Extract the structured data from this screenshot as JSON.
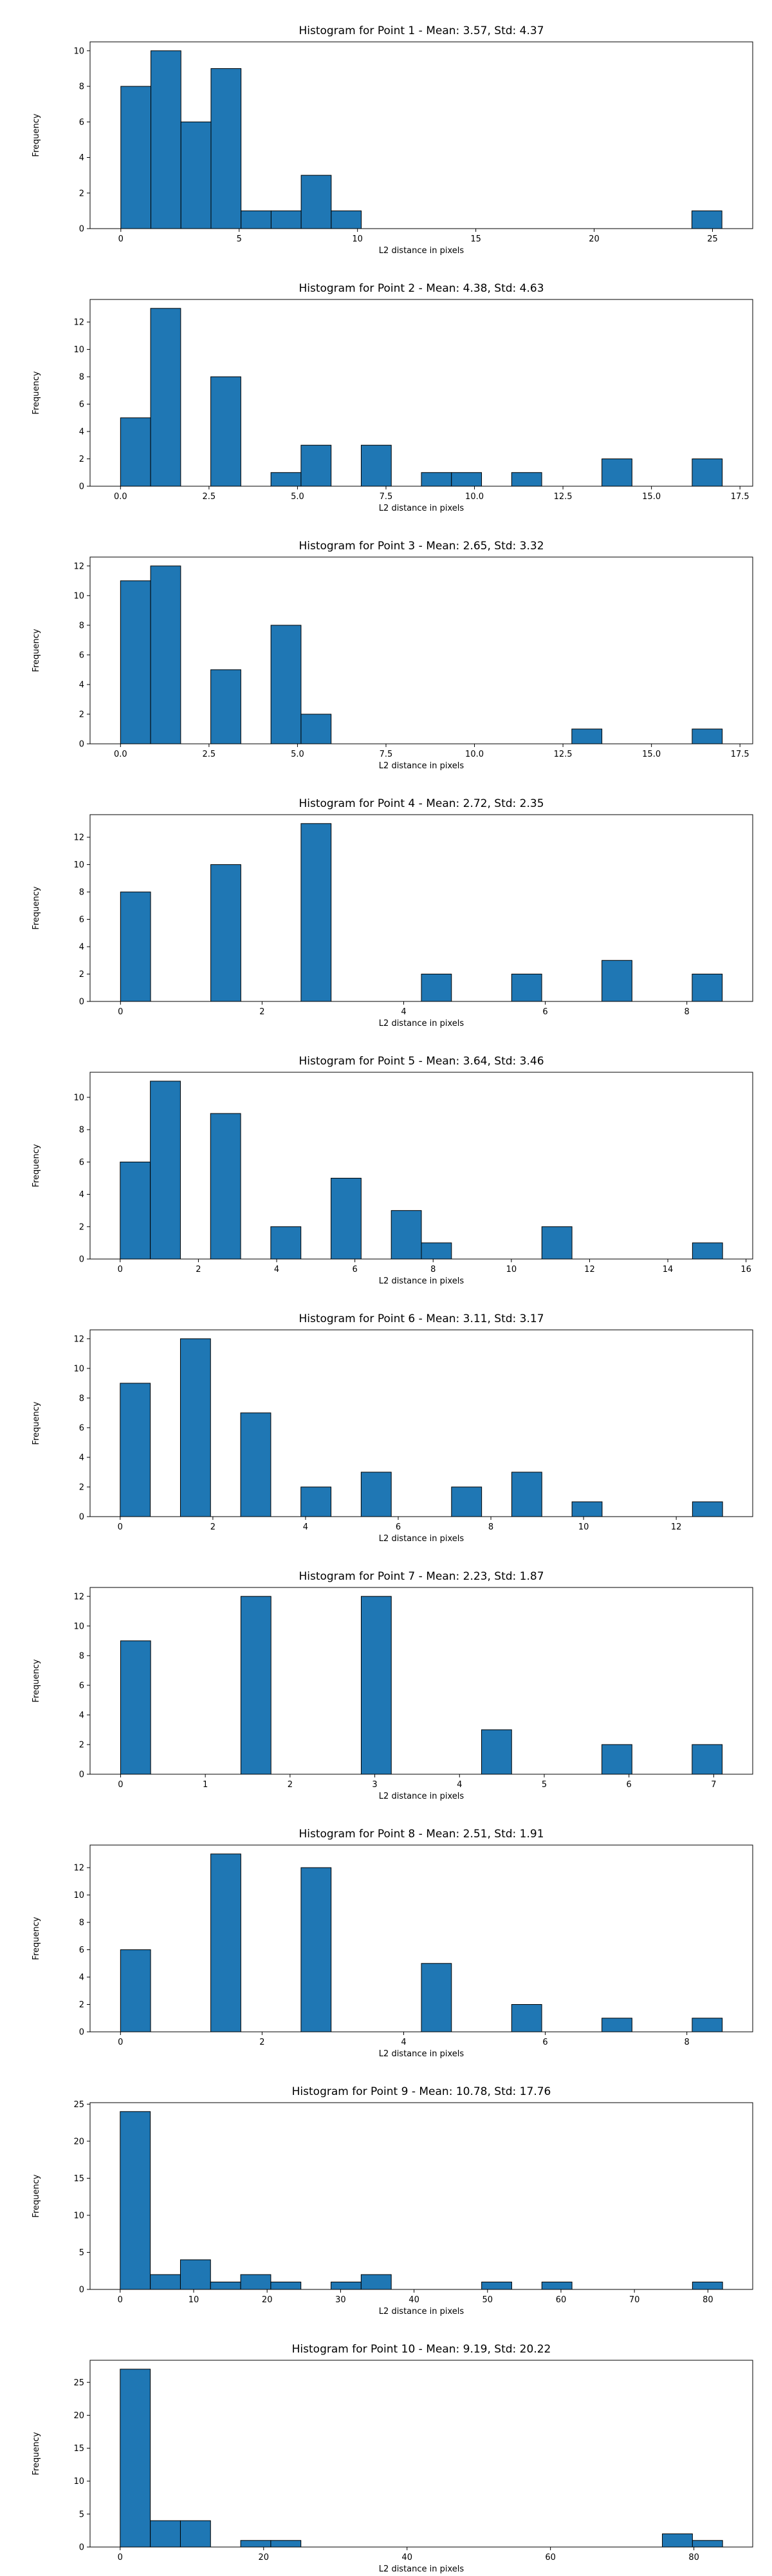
{
  "figure": {
    "background": "#ffffff",
    "bar_color": "#1f77b4",
    "edge_color": "#000000"
  },
  "chart_data": [
    {
      "type": "bar",
      "title": "Histogram for Point 1 - Mean: 3.57, Std: 4.37",
      "xlabel": "L2 distance in pixels",
      "ylabel": "Frequency",
      "xlim": [
        -1.3,
        26.7
      ],
      "ylim": [
        0,
        10.5
      ],
      "xticks": [
        0,
        5,
        10,
        15,
        20,
        25
      ],
      "xtick_labels": [
        "0",
        "5",
        "10",
        "15",
        "20",
        "25"
      ],
      "yticks": [
        0,
        2,
        4,
        6,
        8,
        10
      ],
      "ytick_labels": [
        "0",
        "2",
        "4",
        "6",
        "8",
        "10"
      ],
      "bin_edges": [
        0.0,
        1.27,
        2.54,
        3.81,
        5.08,
        6.35,
        7.62,
        8.89,
        10.16,
        11.43,
        12.7,
        13.97,
        15.24,
        16.51,
        17.78,
        19.05,
        20.32,
        21.59,
        22.86,
        24.13,
        25.4
      ],
      "values": [
        8,
        10,
        6,
        9,
        1,
        1,
        3,
        1,
        0,
        0,
        0,
        0,
        0,
        0,
        0,
        0,
        0,
        0,
        0,
        1
      ]
    },
    {
      "type": "bar",
      "title": "Histogram for Point 2 - Mean: 4.38, Std: 4.63",
      "xlabel": "L2 distance in pixels",
      "ylabel": "Frequency",
      "xlim": [
        -0.86,
        17.86
      ],
      "ylim": [
        0,
        13.65
      ],
      "xticks": [
        0,
        2.5,
        5,
        7.5,
        10,
        12.5,
        15,
        17.5
      ],
      "xtick_labels": [
        "0.0",
        "2.5",
        "5.0",
        "7.5",
        "10.0",
        "12.5",
        "15.0",
        "17.5"
      ],
      "yticks": [
        0,
        2,
        4,
        6,
        8,
        10,
        12
      ],
      "ytick_labels": [
        "0",
        "2",
        "4",
        "6",
        "8",
        "10",
        "12"
      ],
      "bin_edges": [
        0.0,
        0.85,
        1.7,
        2.55,
        3.4,
        4.25,
        5.1,
        5.95,
        6.8,
        7.65,
        8.5,
        9.35,
        10.2,
        11.05,
        11.9,
        12.75,
        13.6,
        14.45,
        15.3,
        16.15,
        17.0
      ],
      "values": [
        5,
        13,
        0,
        8,
        0,
        1,
        3,
        0,
        3,
        0,
        1,
        1,
        0,
        1,
        0,
        0,
        2,
        0,
        0,
        2
      ]
    },
    {
      "type": "bar",
      "title": "Histogram for Point 3 - Mean: 2.65, Std: 3.32",
      "xlabel": "L2 distance in pixels",
      "ylabel": "Frequency",
      "xlim": [
        -0.86,
        17.86
      ],
      "ylim": [
        0,
        12.6
      ],
      "xticks": [
        0,
        2.5,
        5,
        7.5,
        10,
        12.5,
        15,
        17.5
      ],
      "xtick_labels": [
        "0.0",
        "2.5",
        "5.0",
        "7.5",
        "10.0",
        "12.5",
        "15.0",
        "17.5"
      ],
      "yticks": [
        0,
        2,
        4,
        6,
        8,
        10,
        12
      ],
      "ytick_labels": [
        "0",
        "2",
        "4",
        "6",
        "8",
        "10",
        "12"
      ],
      "bin_edges": [
        0.0,
        0.85,
        1.7,
        2.55,
        3.4,
        4.25,
        5.1,
        5.95,
        6.8,
        7.65,
        8.5,
        9.35,
        10.2,
        11.05,
        11.9,
        12.75,
        13.6,
        14.45,
        15.3,
        16.15,
        17.0
      ],
      "values": [
        11,
        12,
        0,
        5,
        0,
        8,
        2,
        0,
        0,
        0,
        0,
        0,
        0,
        0,
        0,
        1,
        0,
        0,
        0,
        1
      ]
    },
    {
      "type": "bar",
      "title": "Histogram for Point 4 - Mean: 2.72, Std: 2.35",
      "xlabel": "L2 distance in pixels",
      "ylabel": "Frequency",
      "xlim": [
        -0.43,
        8.93
      ],
      "ylim": [
        0,
        13.65
      ],
      "xticks": [
        0,
        2,
        4,
        6,
        8
      ],
      "xtick_labels": [
        "0",
        "2",
        "4",
        "6",
        "8"
      ],
      "yticks": [
        0,
        2,
        4,
        6,
        8,
        10,
        12
      ],
      "ytick_labels": [
        "0",
        "2",
        "4",
        "6",
        "8",
        "10",
        "12"
      ],
      "bin_edges": [
        0.0,
        0.425,
        0.85,
        1.275,
        1.7,
        2.125,
        2.55,
        2.975,
        3.4,
        3.825,
        4.25,
        4.675,
        5.1,
        5.525,
        5.95,
        6.375,
        6.8,
        7.225,
        7.65,
        8.075,
        8.5
      ],
      "values": [
        8,
        0,
        0,
        10,
        0,
        0,
        13,
        0,
        0,
        0,
        2,
        0,
        0,
        2,
        0,
        0,
        3,
        0,
        0,
        2
      ]
    },
    {
      "type": "bar",
      "title": "Histogram for Point 5 - Mean: 3.64, Std: 3.46",
      "xlabel": "L2 distance in pixels",
      "ylabel": "Frequency",
      "xlim": [
        -0.77,
        16.17
      ],
      "ylim": [
        0,
        11.55
      ],
      "xticks": [
        0,
        2,
        4,
        6,
        8,
        10,
        12,
        14,
        16
      ],
      "xtick_labels": [
        "0",
        "2",
        "4",
        "6",
        "8",
        "10",
        "12",
        "14",
        "16"
      ],
      "yticks": [
        0,
        2,
        4,
        6,
        8,
        10
      ],
      "ytick_labels": [
        "0",
        "2",
        "4",
        "6",
        "8",
        "10"
      ],
      "bin_edges": [
        0.0,
        0.77,
        1.54,
        2.31,
        3.08,
        3.85,
        4.62,
        5.39,
        6.16,
        6.93,
        7.7,
        8.47,
        9.24,
        10.01,
        10.78,
        11.55,
        12.32,
        13.09,
        13.86,
        14.63,
        15.4
      ],
      "values": [
        6,
        11,
        0,
        9,
        0,
        2,
        0,
        5,
        0,
        3,
        1,
        0,
        0,
        0,
        2,
        0,
        0,
        0,
        0,
        1
      ]
    },
    {
      "type": "bar",
      "title": "Histogram for Point 6 - Mean: 3.11, Std: 3.17",
      "xlabel": "L2 distance in pixels",
      "ylabel": "Frequency",
      "xlim": [
        -0.65,
        13.65
      ],
      "ylim": [
        0,
        12.6
      ],
      "xticks": [
        0,
        2,
        4,
        6,
        8,
        10,
        12
      ],
      "xtick_labels": [
        "0",
        "2",
        "4",
        "6",
        "8",
        "10",
        "12"
      ],
      "yticks": [
        0,
        2,
        4,
        6,
        8,
        10,
        12
      ],
      "ytick_labels": [
        "0",
        "2",
        "4",
        "6",
        "8",
        "10",
        "12"
      ],
      "bin_edges": [
        0.0,
        0.65,
        1.3,
        1.95,
        2.6,
        3.25,
        3.9,
        4.55,
        5.2,
        5.85,
        6.5,
        7.15,
        7.8,
        8.45,
        9.1,
        9.75,
        10.4,
        11.05,
        11.7,
        12.35,
        13.0
      ],
      "values": [
        9,
        0,
        12,
        0,
        7,
        0,
        2,
        0,
        3,
        0,
        0,
        2,
        0,
        3,
        0,
        1,
        0,
        0,
        0,
        1
      ]
    },
    {
      "type": "bar",
      "title": "Histogram for Point 7 - Mean: 2.23, Std: 1.87",
      "xlabel": "L2 distance in pixels",
      "ylabel": "Frequency",
      "xlim": [
        -0.36,
        7.46
      ],
      "ylim": [
        0,
        12.6
      ],
      "xticks": [
        0,
        1,
        2,
        3,
        4,
        5,
        6,
        7
      ],
      "xtick_labels": [
        "0",
        "1",
        "2",
        "3",
        "4",
        "5",
        "6",
        "7"
      ],
      "yticks": [
        0,
        2,
        4,
        6,
        8,
        10,
        12
      ],
      "ytick_labels": [
        "0",
        "2",
        "4",
        "6",
        "8",
        "10",
        "12"
      ],
      "bin_edges": [
        0.0,
        0.355,
        0.71,
        1.065,
        1.42,
        1.775,
        2.13,
        2.485,
        2.84,
        3.195,
        3.55,
        3.905,
        4.26,
        4.615,
        4.97,
        5.325,
        5.68,
        6.035,
        6.39,
        6.745,
        7.1
      ],
      "values": [
        9,
        0,
        0,
        0,
        12,
        0,
        0,
        0,
        12,
        0,
        0,
        0,
        3,
        0,
        0,
        0,
        2,
        0,
        0,
        2
      ]
    },
    {
      "type": "bar",
      "title": "Histogram for Point 8 - Mean: 2.51, Std: 1.91",
      "xlabel": "L2 distance in pixels",
      "ylabel": "Frequency",
      "xlim": [
        -0.43,
        8.93
      ],
      "ylim": [
        0,
        13.65
      ],
      "xticks": [
        0,
        2,
        4,
        6,
        8
      ],
      "xtick_labels": [
        "0",
        "2",
        "4",
        "6",
        "8"
      ],
      "yticks": [
        0,
        2,
        4,
        6,
        8,
        10,
        12
      ],
      "ytick_labels": [
        "0",
        "2",
        "4",
        "6",
        "8",
        "10",
        "12"
      ],
      "bin_edges": [
        0.0,
        0.425,
        0.85,
        1.275,
        1.7,
        2.125,
        2.55,
        2.975,
        3.4,
        3.825,
        4.25,
        4.675,
        5.1,
        5.525,
        5.95,
        6.375,
        6.8,
        7.225,
        7.65,
        8.075,
        8.5
      ],
      "values": [
        6,
        0,
        0,
        13,
        0,
        0,
        12,
        0,
        0,
        0,
        5,
        0,
        0,
        2,
        0,
        0,
        1,
        0,
        0,
        1
      ]
    },
    {
      "type": "bar",
      "title": "Histogram for Point 9 - Mean: 10.78, Std: 17.76",
      "xlabel": "L2 distance in pixels",
      "ylabel": "Frequency",
      "xlim": [
        -4.1,
        86.1
      ],
      "ylim": [
        0,
        25.2
      ],
      "xticks": [
        0,
        10,
        20,
        30,
        40,
        50,
        60,
        70,
        80
      ],
      "xtick_labels": [
        "0",
        "10",
        "20",
        "30",
        "40",
        "50",
        "60",
        "70",
        "80"
      ],
      "yticks": [
        0,
        5,
        10,
        15,
        20,
        25
      ],
      "ytick_labels": [
        "0",
        "5",
        "10",
        "15",
        "20",
        "25"
      ],
      "bin_edges": [
        0.0,
        4.1,
        8.2,
        12.3,
        16.4,
        20.5,
        24.6,
        28.7,
        32.8,
        36.9,
        41.0,
        45.1,
        49.2,
        53.3,
        57.4,
        61.5,
        65.6,
        69.7,
        73.8,
        77.9,
        82.0
      ],
      "values": [
        24,
        2,
        4,
        1,
        2,
        1,
        0,
        1,
        2,
        0,
        0,
        0,
        1,
        0,
        1,
        0,
        0,
        0,
        0,
        1
      ]
    },
    {
      "type": "bar",
      "title": "Histogram for Point 10 - Mean: 9.19, Std: 20.22",
      "xlabel": "L2 distance in pixels",
      "ylabel": "Frequency",
      "xlim": [
        -4.2,
        88.2
      ],
      "ylim": [
        0,
        28.35
      ],
      "xticks": [
        0,
        20,
        40,
        60,
        80
      ],
      "xtick_labels": [
        "0",
        "20",
        "40",
        "60",
        "80"
      ],
      "yticks": [
        0,
        5,
        10,
        15,
        20,
        25
      ],
      "ytick_labels": [
        "0",
        "5",
        "10",
        "15",
        "20",
        "25"
      ],
      "bin_edges": [
        0.0,
        4.2,
        8.4,
        12.6,
        16.8,
        21.0,
        25.2,
        29.4,
        33.6,
        37.8,
        42.0,
        46.2,
        50.4,
        54.6,
        58.8,
        63.0,
        67.2,
        71.4,
        75.6,
        79.8,
        84.0
      ],
      "values": [
        27,
        4,
        4,
        0,
        1,
        1,
        0,
        0,
        0,
        0,
        0,
        0,
        0,
        0,
        0,
        0,
        0,
        0,
        2,
        1
      ]
    }
  ]
}
